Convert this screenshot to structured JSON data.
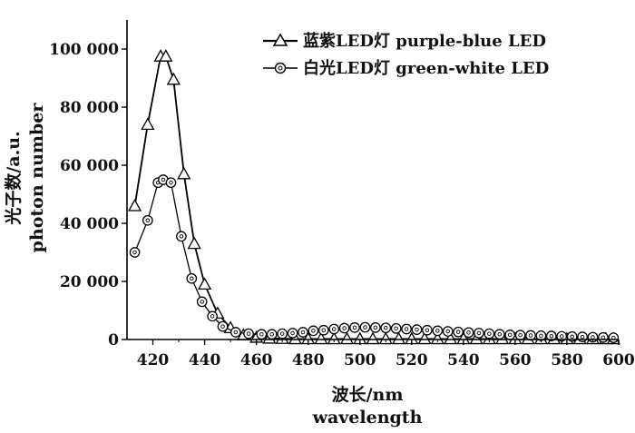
{
  "chart_data": {
    "type": "line",
    "title": "",
    "xlabel_cn": "波长/nm",
    "xlabel_en": "wavelength",
    "ylabel_cn": "光子数/a.u.",
    "ylabel_en": "photon number",
    "xlim": [
      410,
      600
    ],
    "ylim": [
      0,
      110000
    ],
    "x_ticks": [
      420,
      440,
      460,
      480,
      500,
      520,
      540,
      560,
      580,
      600
    ],
    "x_tick_labels": [
      "420",
      "440",
      "460",
      "480",
      "500",
      "520",
      "540",
      "560",
      "580",
      "600"
    ],
    "y_ticks": [
      0,
      20000,
      40000,
      60000,
      80000,
      100000
    ],
    "y_tick_labels": [
      "0",
      "20 000",
      "40 000",
      "60 000",
      "80 000",
      "100 000"
    ],
    "grid": false,
    "legend_position": "top-right",
    "series": [
      {
        "name": "蓝紫LED灯 purple-blue LED",
        "marker": "triangle",
        "color": "#000000",
        "x": [
          413,
          418,
          423,
          425,
          428,
          432,
          436,
          440,
          445,
          450,
          455,
          460,
          465,
          470,
          475,
          480,
          485,
          490,
          495,
          500,
          505,
          510,
          515,
          520,
          525,
          530,
          535,
          540,
          545,
          550,
          555,
          560,
          565,
          570,
          575,
          580,
          585,
          590,
          595,
          598
        ],
        "y": [
          46000,
          74000,
          97500,
          97500,
          89500,
          57000,
          33000,
          19000,
          9000,
          4000,
          1500,
          700,
          400,
          300,
          200,
          200,
          200,
          200,
          200,
          200,
          200,
          200,
          200,
          200,
          200,
          200,
          200,
          200,
          200,
          200,
          200,
          200,
          200,
          200,
          200,
          200,
          200,
          200,
          200,
          200
        ]
      },
      {
        "name": "白光LED灯 green-white LED",
        "marker": "circle",
        "color": "#000000",
        "x": [
          413,
          418,
          422,
          424,
          427,
          431,
          435,
          439,
          443,
          447,
          452,
          457,
          462,
          466,
          470,
          474,
          478,
          482,
          486,
          490,
          494,
          498,
          502,
          506,
          510,
          514,
          518,
          522,
          526,
          530,
          534,
          538,
          542,
          546,
          550,
          554,
          558,
          562,
          566,
          570,
          574,
          578,
          582,
          586,
          590,
          594,
          598
        ],
        "y": [
          30000,
          41000,
          54000,
          55000,
          54000,
          35500,
          21000,
          13000,
          8000,
          4500,
          2500,
          2000,
          1800,
          1800,
          2000,
          2200,
          2500,
          3000,
          3200,
          3600,
          3900,
          4100,
          4200,
          4100,
          4000,
          3800,
          3600,
          3400,
          3200,
          3000,
          2800,
          2600,
          2400,
          2200,
          2000,
          1800,
          1600,
          1500,
          1400,
          1300,
          1200,
          1100,
          1000,
          900,
          800,
          700,
          600
        ]
      }
    ]
  }
}
